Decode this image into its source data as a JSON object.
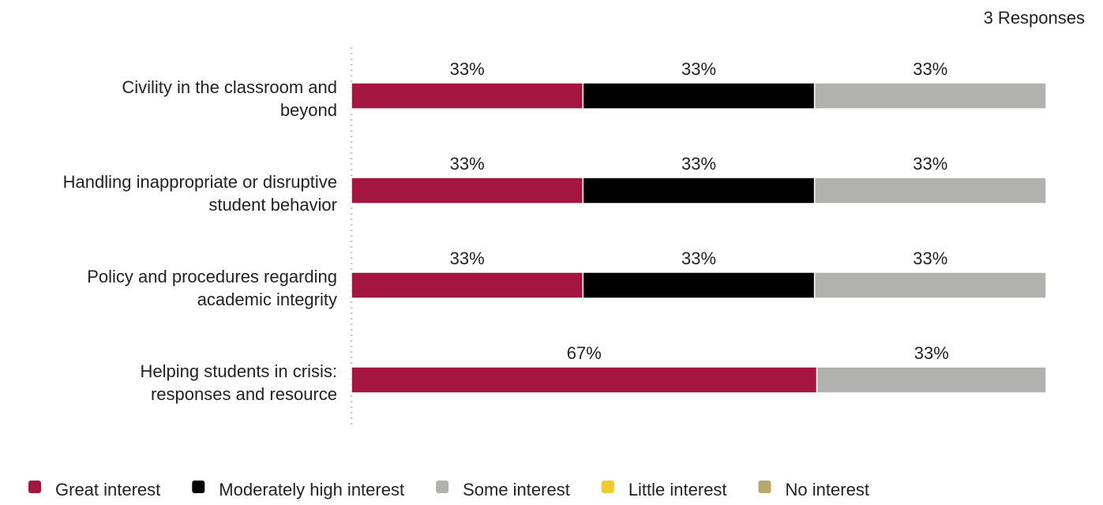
{
  "header": {
    "responses_label": "3 Responses"
  },
  "chart_data": {
    "type": "bar",
    "orientation": "horizontal",
    "stacked": true,
    "normalized_percent": true,
    "categories": [
      "Civility in the classroom and beyond",
      "Handling inappropriate or disruptive student behavior",
      "Policy and procedures regarding academic integrity",
      "Helping students in crisis: responses and resource"
    ],
    "category_lines": [
      [
        "Civility in the classroom and",
        "beyond"
      ],
      [
        "Handling inappropriate or disruptive",
        "student behavior"
      ],
      [
        "Policy and procedures regarding",
        "academic integrity"
      ],
      [
        "Helping students in crisis:",
        "responses and resource"
      ]
    ],
    "series": [
      {
        "name": "Great interest",
        "color": "#a4153f",
        "values": [
          33,
          33,
          33,
          67
        ]
      },
      {
        "name": "Moderately high interest",
        "color": "#000000",
        "values": [
          33,
          33,
          33,
          0
        ]
      },
      {
        "name": "Some interest",
        "color": "#b1b2af",
        "values": [
          33,
          33,
          33,
          33
        ]
      },
      {
        "name": "Little interest",
        "color": "#f2c932",
        "values": [
          0,
          0,
          0,
          0
        ]
      },
      {
        "name": "No interest",
        "color": "#b8a86c",
        "values": [
          0,
          0,
          0,
          0
        ]
      }
    ],
    "value_suffix": "%",
    "legend_position": "bottom",
    "grid": false
  }
}
